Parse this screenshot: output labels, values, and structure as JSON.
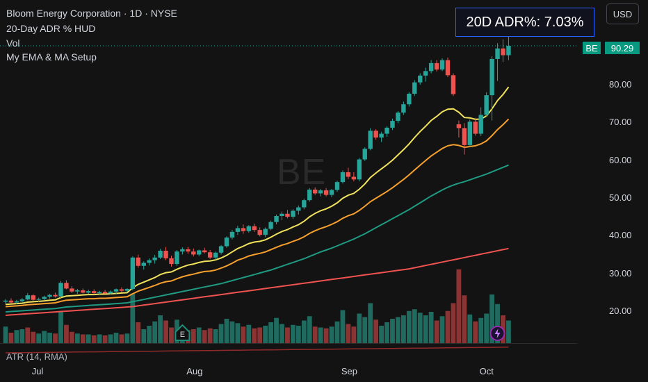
{
  "header": {
    "title": "Bloom Energy Corporation · 1D · NYSE",
    "indicator_1": "20-Day ADR % HUD",
    "indicator_2": "Vol",
    "indicator_3": "My EMA & MA Setup",
    "currency_button": "USD",
    "adr_text": "20D ADR%: 7.03%"
  },
  "watermark": "BE",
  "price_label": {
    "ticker": "BE",
    "last": "90.29"
  },
  "atr_label": "ATR (14, RMA)",
  "markers": {
    "earnings": "E",
    "dividend_icon": "lightning-icon"
  },
  "colors": {
    "up": "#26a69a",
    "down": "#ef5350",
    "ema_fast": "#f2e35c",
    "ema_mid": "#f7a02d",
    "ma_mid": "#1e9b82",
    "ma_slow": "#ef5350",
    "accent": "#2962ff"
  },
  "chart_data": {
    "type": "candlestick",
    "title": "Bloom Energy Corporation · 1D · NYSE",
    "y_ticks": [
      "80.00",
      "70.00",
      "60.00",
      "50.00",
      "40.00",
      "30.00",
      "20.00"
    ],
    "x_ticks": [
      "Jul",
      "Aug",
      "Sep",
      "Oct"
    ],
    "ylim": [
      12,
      96
    ],
    "last_price": 90.29,
    "ohlc": [
      [
        22.5,
        23.2,
        21.9,
        22.8
      ],
      [
        22.8,
        23.4,
        22.0,
        22.3
      ],
      [
        22.3,
        23.0,
        21.8,
        22.6
      ],
      [
        22.6,
        23.5,
        22.2,
        23.1
      ],
      [
        23.1,
        24.8,
        22.9,
        24.2
      ],
      [
        24.2,
        24.5,
        22.8,
        23.0
      ],
      [
        23.0,
        23.6,
        22.4,
        23.2
      ],
      [
        23.2,
        24.1,
        22.9,
        23.8
      ],
      [
        23.8,
        24.6,
        23.3,
        24.3
      ],
      [
        24.3,
        24.9,
        23.6,
        23.9
      ],
      [
        23.9,
        28.0,
        23.5,
        27.5
      ],
      [
        27.5,
        28.2,
        25.8,
        26.0
      ],
      [
        26.0,
        26.6,
        24.8,
        25.2
      ],
      [
        25.2,
        25.9,
        24.6,
        25.5
      ],
      [
        25.5,
        26.0,
        24.7,
        24.9
      ],
      [
        24.9,
        25.7,
        24.5,
        25.3
      ],
      [
        25.3,
        25.8,
        24.4,
        24.8
      ],
      [
        24.8,
        25.4,
        24.2,
        25.1
      ],
      [
        25.1,
        25.6,
        24.5,
        24.7
      ],
      [
        24.7,
        25.5,
        24.4,
        25.2
      ],
      [
        25.2,
        26.0,
        24.6,
        25.8
      ],
      [
        25.8,
        26.3,
        25.0,
        25.4
      ],
      [
        25.4,
        26.1,
        25.0,
        25.9
      ],
      [
        25.9,
        34.5,
        25.5,
        34.2
      ],
      [
        34.2,
        35.0,
        31.5,
        32.0
      ],
      [
        32.0,
        33.2,
        31.0,
        32.8
      ],
      [
        32.8,
        34.0,
        32.1,
        33.5
      ],
      [
        33.5,
        34.9,
        32.6,
        34.2
      ],
      [
        34.2,
        36.5,
        33.8,
        36.0
      ],
      [
        36.0,
        37.0,
        33.5,
        34.0
      ],
      [
        34.0,
        34.7,
        31.8,
        32.5
      ],
      [
        32.5,
        36.2,
        32.0,
        35.8
      ],
      [
        35.8,
        36.9,
        35.0,
        36.4
      ],
      [
        36.4,
        37.0,
        35.2,
        35.8
      ],
      [
        35.8,
        36.6,
        34.5,
        35.0
      ],
      [
        35.0,
        36.3,
        34.6,
        36.1
      ],
      [
        36.1,
        36.8,
        35.3,
        35.6
      ],
      [
        35.6,
        36.2,
        33.8,
        34.2
      ],
      [
        34.2,
        35.8,
        33.6,
        35.5
      ],
      [
        35.5,
        37.5,
        35.0,
        37.2
      ],
      [
        37.2,
        39.8,
        36.8,
        39.5
      ],
      [
        39.5,
        41.5,
        39.0,
        41.0
      ],
      [
        41.0,
        42.6,
        40.2,
        42.0
      ],
      [
        42.0,
        43.0,
        40.5,
        41.2
      ],
      [
        41.2,
        42.8,
        40.8,
        42.5
      ],
      [
        42.5,
        43.2,
        41.0,
        41.5
      ],
      [
        41.5,
        42.2,
        39.8,
        40.2
      ],
      [
        40.2,
        42.2,
        39.6,
        41.8
      ],
      [
        41.8,
        44.0,
        41.4,
        43.6
      ],
      [
        43.6,
        45.6,
        43.0,
        45.2
      ],
      [
        45.2,
        46.4,
        44.1,
        45.8
      ],
      [
        45.8,
        46.8,
        44.6,
        45.0
      ],
      [
        45.0,
        47.0,
        44.4,
        46.6
      ],
      [
        46.6,
        48.0,
        45.6,
        47.5
      ],
      [
        47.5,
        49.8,
        47.0,
        49.4
      ],
      [
        49.4,
        52.6,
        49.0,
        52.2
      ],
      [
        52.2,
        52.8,
        50.8,
        51.2
      ],
      [
        51.2,
        52.4,
        50.4,
        52.0
      ],
      [
        52.0,
        52.6,
        50.4,
        50.8
      ],
      [
        50.8,
        52.4,
        50.2,
        52.1
      ],
      [
        52.1,
        54.6,
        51.6,
        54.2
      ],
      [
        54.2,
        57.3,
        53.8,
        56.8
      ],
      [
        56.8,
        58.0,
        55.0,
        55.6
      ],
      [
        55.6,
        56.8,
        54.4,
        54.9
      ],
      [
        54.9,
        60.6,
        54.4,
        60.2
      ],
      [
        60.2,
        63.4,
        59.8,
        63.0
      ],
      [
        63.0,
        68.5,
        62.6,
        67.8
      ],
      [
        67.8,
        68.2,
        65.4,
        66.0
      ],
      [
        66.0,
        67.5,
        64.8,
        67.0
      ],
      [
        67.0,
        69.0,
        66.2,
        68.6
      ],
      [
        68.6,
        71.0,
        68.0,
        70.4
      ],
      [
        70.4,
        73.0,
        69.8,
        72.6
      ],
      [
        72.6,
        75.5,
        72.0,
        74.8
      ],
      [
        74.8,
        78.0,
        74.2,
        77.6
      ],
      [
        77.6,
        81.2,
        77.0,
        80.6
      ],
      [
        80.6,
        83.0,
        80.0,
        82.4
      ],
      [
        82.4,
        84.5,
        80.8,
        83.6
      ],
      [
        83.6,
        86.5,
        83.0,
        85.7
      ],
      [
        85.7,
        86.5,
        83.5,
        84.0
      ],
      [
        84.0,
        87.0,
        83.6,
        86.5
      ],
      [
        86.5,
        87.2,
        82.0,
        82.5
      ],
      [
        82.5,
        83.0,
        77.0,
        77.5
      ],
      [
        69.5,
        70.5,
        66.0,
        68.5
      ],
      [
        68.5,
        69.8,
        61.5,
        64.0
      ],
      [
        64.0,
        70.8,
        63.5,
        70.2
      ],
      [
        70.2,
        71.2,
        66.5,
        67.0
      ],
      [
        67.0,
        74.0,
        66.4,
        72.0
      ],
      [
        72.0,
        78.0,
        71.5,
        77.2
      ],
      [
        77.2,
        87.5,
        70.5,
        86.8
      ],
      [
        86.8,
        91.0,
        81.0,
        89.6
      ],
      [
        89.6,
        92.0,
        86.0,
        87.8
      ],
      [
        87.8,
        93.0,
        86.5,
        90.29
      ]
    ],
    "volume": [
      [
        1.9,
        1
      ],
      [
        1.2,
        0
      ],
      [
        1.5,
        1
      ],
      [
        1.6,
        1
      ],
      [
        1.8,
        0
      ],
      [
        1.3,
        0
      ],
      [
        1.1,
        1
      ],
      [
        1.4,
        1
      ],
      [
        1.2,
        1
      ],
      [
        1.1,
        0
      ],
      [
        3.6,
        1
      ],
      [
        2.1,
        0
      ],
      [
        1.3,
        0
      ],
      [
        1.1,
        1
      ],
      [
        1.0,
        0
      ],
      [
        1.0,
        1
      ],
      [
        0.9,
        0
      ],
      [
        1.0,
        1
      ],
      [
        0.9,
        0
      ],
      [
        1.0,
        1
      ],
      [
        1.2,
        1
      ],
      [
        1.0,
        0
      ],
      [
        1.1,
        1
      ],
      [
        5.7,
        1
      ],
      [
        2.4,
        0
      ],
      [
        1.6,
        1
      ],
      [
        2.0,
        1
      ],
      [
        2.5,
        1
      ],
      [
        3.2,
        1
      ],
      [
        2.6,
        0
      ],
      [
        1.8,
        0
      ],
      [
        2.7,
        1
      ],
      [
        1.9,
        1
      ],
      [
        1.5,
        0
      ],
      [
        1.6,
        0
      ],
      [
        1.8,
        1
      ],
      [
        1.5,
        0
      ],
      [
        1.7,
        0
      ],
      [
        1.6,
        1
      ],
      [
        2.2,
        1
      ],
      [
        2.8,
        1
      ],
      [
        2.5,
        1
      ],
      [
        2.3,
        1
      ],
      [
        1.9,
        0
      ],
      [
        2.1,
        1
      ],
      [
        1.7,
        0
      ],
      [
        1.8,
        0
      ],
      [
        2.0,
        1
      ],
      [
        2.4,
        1
      ],
      [
        2.9,
        1
      ],
      [
        2.2,
        1
      ],
      [
        1.8,
        0
      ],
      [
        2.1,
        1
      ],
      [
        2.0,
        1
      ],
      [
        2.6,
        1
      ],
      [
        3.1,
        1
      ],
      [
        1.9,
        0
      ],
      [
        1.8,
        1
      ],
      [
        1.7,
        0
      ],
      [
        1.9,
        1
      ],
      [
        2.5,
        1
      ],
      [
        3.8,
        1
      ],
      [
        2.2,
        0
      ],
      [
        1.9,
        0
      ],
      [
        3.4,
        1
      ],
      [
        3.0,
        1
      ],
      [
        4.6,
        1
      ],
      [
        2.7,
        0
      ],
      [
        2.0,
        1
      ],
      [
        2.4,
        1
      ],
      [
        2.8,
        1
      ],
      [
        3.0,
        1
      ],
      [
        3.2,
        1
      ],
      [
        3.7,
        1
      ],
      [
        3.9,
        1
      ],
      [
        3.5,
        1
      ],
      [
        3.2,
        1
      ],
      [
        3.6,
        1
      ],
      [
        2.6,
        0
      ],
      [
        3.1,
        1
      ],
      [
        3.7,
        0
      ],
      [
        4.6,
        0
      ],
      [
        8.5,
        0
      ],
      [
        5.5,
        0
      ],
      [
        3.3,
        1
      ],
      [
        2.5,
        0
      ],
      [
        2.9,
        1
      ],
      [
        3.4,
        1
      ],
      [
        5.6,
        1
      ],
      [
        4.5,
        1
      ],
      [
        3.2,
        0
      ],
      [
        2.6,
        1
      ]
    ],
    "ema_fast": [
      21.8,
      21.9,
      22.0,
      22.1,
      22.4,
      22.5,
      22.6,
      22.7,
      22.9,
      23.0,
      23.6,
      24.0,
      24.1,
      24.2,
      24.3,
      24.4,
      24.4,
      24.5,
      24.5,
      24.6,
      24.7,
      24.8,
      24.9,
      26.2,
      27.1,
      27.7,
      28.3,
      28.9,
      29.7,
      30.2,
      30.4,
      31.1,
      31.7,
      32.2,
      32.5,
      32.9,
      33.2,
      33.3,
      33.6,
      34.1,
      34.8,
      35.7,
      36.6,
      37.2,
      37.9,
      38.3,
      38.5,
      38.9,
      39.6,
      40.4,
      41.1,
      41.6,
      42.3,
      42.9,
      43.8,
      45.0,
      45.9,
      46.6,
      47.1,
      47.8,
      48.7,
      49.9,
      50.7,
      51.2,
      52.3,
      53.7,
      55.4,
      56.6,
      57.7,
      58.8,
      60.0,
      61.4,
      62.8,
      64.3,
      66.0,
      67.6,
      69.0,
      70.5,
      71.6,
      72.8,
      73.5,
      73.6,
      72.7,
      71.3,
      71.2,
      70.8,
      70.9,
      71.7,
      73.6,
      75.8,
      77.4,
      79.4
    ],
    "ema_mid": [
      21.2,
      21.3,
      21.4,
      21.5,
      21.7,
      21.8,
      21.9,
      22.0,
      22.1,
      22.2,
      22.6,
      22.9,
      23.0,
      23.1,
      23.2,
      23.3,
      23.3,
      23.4,
      23.4,
      23.5,
      23.6,
      23.7,
      23.8,
      24.6,
      25.3,
      25.8,
      26.3,
      26.8,
      27.4,
      27.8,
      28.0,
      28.6,
      29.1,
      29.5,
      29.8,
      30.2,
      30.5,
      30.6,
      30.9,
      31.4,
      32.0,
      32.7,
      33.5,
      34.0,
      34.6,
      35.0,
      35.3,
      35.7,
      36.3,
      36.9,
      37.5,
      37.9,
      38.5,
      39.0,
      39.7,
      40.6,
      41.3,
      41.9,
      42.4,
      43.0,
      43.7,
      44.6,
      45.3,
      45.8,
      46.7,
      47.8,
      49.0,
      49.9,
      50.8,
      51.7,
      52.7,
      53.8,
      54.9,
      56.1,
      57.4,
      58.7,
      59.9,
      61.1,
      62.1,
      63.1,
      63.8,
      64.1,
      63.9,
      63.4,
      63.6,
      63.8,
      64.3,
      65.1,
      66.5,
      68.1,
      69.4,
      70.9
    ],
    "ma_mid": [
      19.8,
      19.9,
      20.0,
      20.1,
      20.2,
      20.3,
      20.4,
      20.5,
      20.6,
      20.7,
      20.9,
      21.1,
      21.2,
      21.3,
      21.4,
      21.5,
      21.6,
      21.7,
      21.8,
      21.9,
      22.0,
      22.1,
      22.2,
      22.5,
      22.8,
      23.1,
      23.4,
      23.7,
      24.0,
      24.3,
      24.6,
      24.9,
      25.2,
      25.5,
      25.8,
      26.1,
      26.4,
      26.7,
      27.0,
      27.3,
      27.7,
      28.1,
      28.5,
      28.9,
      29.3,
      29.7,
      30.1,
      30.5,
      30.9,
      31.4,
      31.9,
      32.4,
      32.9,
      33.4,
      33.9,
      34.5,
      35.1,
      35.7,
      36.2,
      36.7,
      37.3,
      37.9,
      38.5,
      39.1,
      39.8,
      40.5,
      41.3,
      42.1,
      42.9,
      43.7,
      44.5,
      45.3,
      46.1,
      46.9,
      47.8,
      48.7,
      49.6,
      50.5,
      51.3,
      52.1,
      52.8,
      53.4,
      53.9,
      54.3,
      54.8,
      55.3,
      55.8,
      56.3,
      56.9,
      57.5,
      58.1,
      58.7
    ],
    "ma_slow": [
      18.9,
      19.0,
      19.1,
      19.2,
      19.3,
      19.4,
      19.5,
      19.6,
      19.7,
      19.8,
      19.9,
      20.0,
      20.1,
      20.2,
      20.3,
      20.4,
      20.5,
      20.6,
      20.7,
      20.8,
      20.9,
      21.0,
      21.1,
      21.2,
      21.4,
      21.6,
      21.8,
      22.0,
      22.2,
      22.4,
      22.6,
      22.8,
      23.0,
      23.2,
      23.4,
      23.6,
      23.8,
      24.0,
      24.2,
      24.4,
      24.6,
      24.8,
      25.0,
      25.2,
      25.4,
      25.6,
      25.8,
      26.0,
      26.2,
      26.4,
      26.6,
      26.8,
      27.0,
      27.2,
      27.4,
      27.6,
      27.8,
      28.0,
      28.2,
      28.4,
      28.6,
      28.8,
      29.0,
      29.2,
      29.4,
      29.6,
      29.8,
      30.0,
      30.2,
      30.4,
      30.6,
      30.8,
      31.0,
      31.2,
      31.5,
      31.8,
      32.1,
      32.4,
      32.7,
      33.0,
      33.3,
      33.6,
      33.9,
      34.2,
      34.5,
      34.8,
      35.1,
      35.4,
      35.7,
      36.0,
      36.3,
      36.6
    ]
  }
}
